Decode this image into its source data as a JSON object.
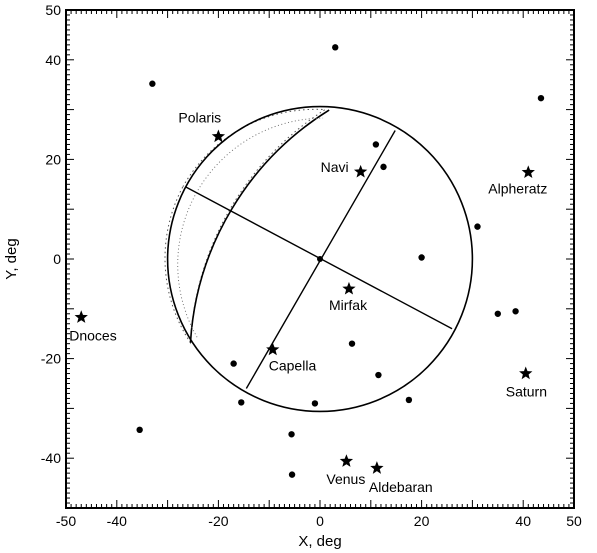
{
  "chart_data": {
    "type": "scatter",
    "xlabel": "X, deg",
    "ylabel": "Y, deg",
    "xlim": [
      -50,
      50
    ],
    "ylim": [
      -50,
      50
    ],
    "x_ticks": [
      -50,
      -40,
      -20,
      0,
      20,
      40,
      50
    ],
    "y_ticks": [
      50,
      40,
      20,
      0,
      -20,
      -40
    ],
    "grid": false,
    "fov_circle": {
      "center": [
        0,
        0
      ],
      "radius": 30
    },
    "named_stars": [
      {
        "label": "Polaris",
        "x": -20,
        "y": 24.6
      },
      {
        "label": "Navi",
        "x": 8,
        "y": 17.5
      },
      {
        "label": "Alpheratz",
        "x": 41,
        "y": 17.4
      },
      {
        "label": "Dnoces",
        "x": -47,
        "y": -11.7
      },
      {
        "label": "Mirfak",
        "x": 5.7,
        "y": -6
      },
      {
        "label": "Capella",
        "x": -9.3,
        "y": -18.2
      },
      {
        "label": "Saturn",
        "x": 40.5,
        "y": -23
      },
      {
        "label": "Venus",
        "x": 5.2,
        "y": -40.6
      },
      {
        "label": "Aldebaran",
        "x": 11.2,
        "y": -42
      }
    ],
    "unlabeled_points": [
      {
        "x": 3,
        "y": 42.5
      },
      {
        "x": -33,
        "y": 35.2
      },
      {
        "x": 43.5,
        "y": 32.3
      },
      {
        "x": 11,
        "y": 23
      },
      {
        "x": 12.5,
        "y": 18.5
      },
      {
        "x": 31,
        "y": 6.5
      },
      {
        "x": 20,
        "y": 0.3
      },
      {
        "x": 38.5,
        "y": -10.5
      },
      {
        "x": 35,
        "y": -11
      },
      {
        "x": 6.3,
        "y": -17
      },
      {
        "x": -17,
        "y": -21
      },
      {
        "x": 11.5,
        "y": -23.3
      },
      {
        "x": -15.5,
        "y": -28.8
      },
      {
        "x": -1,
        "y": -29
      },
      {
        "x": 17.5,
        "y": -28.3
      },
      {
        "x": -35.5,
        "y": -34.3
      },
      {
        "x": -5.6,
        "y": -35.2
      },
      {
        "x": -5.5,
        "y": -43.3
      }
    ],
    "cross_lines": [
      {
        "from": [
          -26.5,
          14.5
        ],
        "to": [
          26,
          -14
        ]
      },
      {
        "from": [
          -14.5,
          -26
        ],
        "to": [
          14.8,
          25.8
        ]
      }
    ],
    "shaded_limb": {
      "outer_arc": {
        "from": [
          -27,
          14.5
        ],
        "to": [
          1,
          30
        ]
      },
      "inner_arc": {
        "from": [
          -25.5,
          -16.8
        ],
        "to": [
          1.8,
          29.9
        ]
      }
    }
  }
}
